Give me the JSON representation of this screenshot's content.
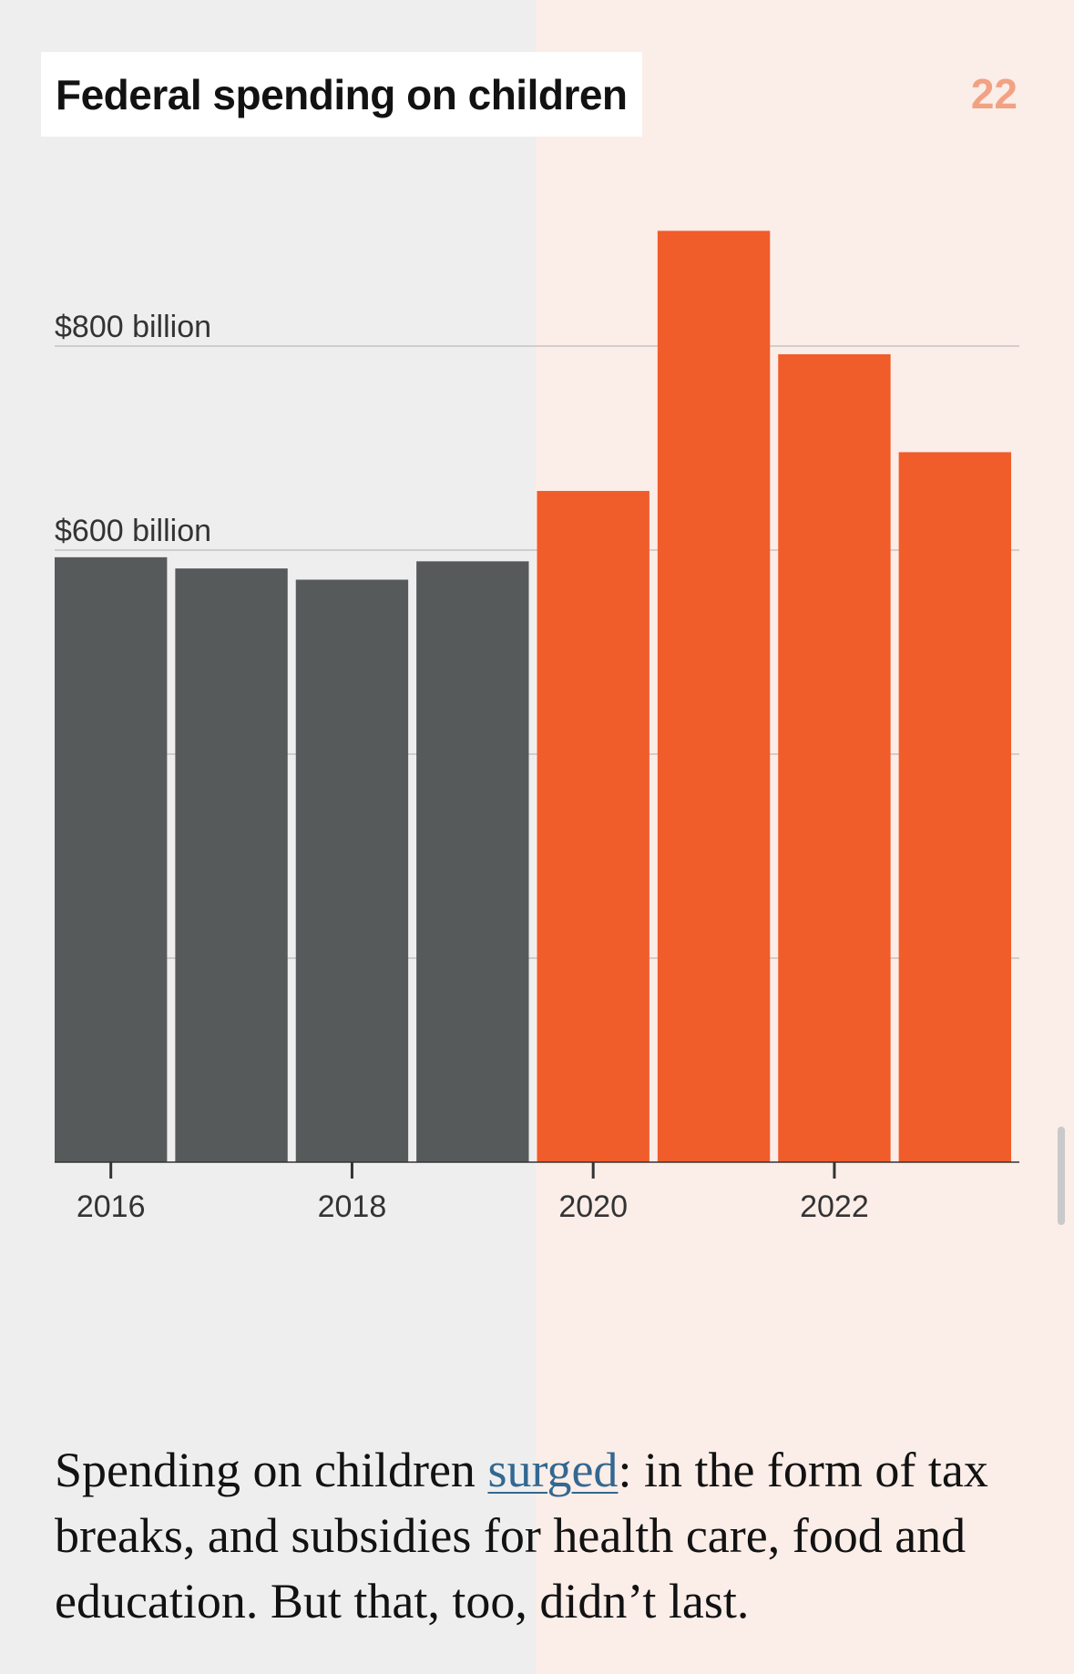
{
  "page_title": "Federal spending on children",
  "page_number": "22",
  "caption": {
    "before": "Spending on children ",
    "link": "surged",
    "after": ": in the form of tax breaks, and subsidies for health care, food and education. But that, too, didn’t last."
  },
  "colors": {
    "before_period": "#575a5a",
    "highlight_period": "#f05c2a",
    "highlight_background": "#fbede8",
    "left_background": "#efeeee",
    "page_number": "#f2a282",
    "link": "#326891"
  },
  "chart_data": {
    "type": "bar",
    "title": "Federal spending on children",
    "categories": [
      "2016",
      "2017",
      "2018",
      "2019",
      "2020",
      "2021",
      "2022",
      "2023"
    ],
    "series": [
      {
        "values": [
          593,
          582,
          571,
          589,
          658,
          913,
          792,
          696
        ]
      }
    ],
    "highlight_from": "2020",
    "xlabel": "",
    "ylabel": "",
    "ylim": [
      0,
      913
    ],
    "yticks": [
      200,
      400,
      600,
      800
    ],
    "ytick_labels": {
      "600": "$600 billion",
      "800": "$800 billion"
    },
    "xtick_labels": [
      "2016",
      "2018",
      "2020",
      "2022"
    ],
    "grid": true,
    "legend": "none"
  }
}
